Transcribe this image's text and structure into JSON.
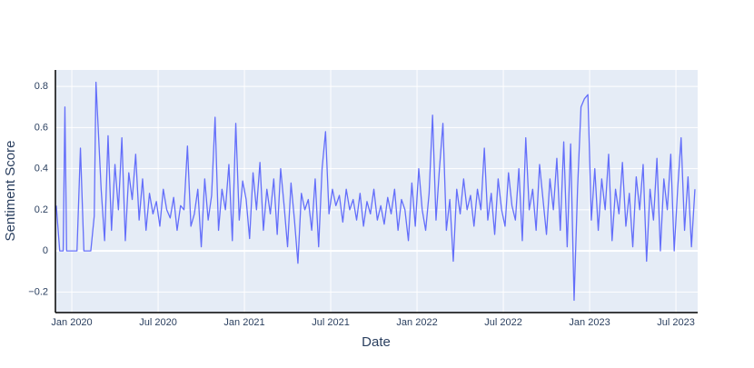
{
  "chart_data": {
    "type": "line",
    "x_label": "Date",
    "y_label": "Sentiment Score",
    "xlim": [
      2019.905,
      2023.626
    ],
    "ylim": [
      -0.3,
      0.88
    ],
    "xticks": [
      {
        "value": 2020.0,
        "label": "Jan 2020"
      },
      {
        "value": 2020.5,
        "label": "Jul 2020"
      },
      {
        "value": 2021.0,
        "label": "Jan 2021"
      },
      {
        "value": 2021.5,
        "label": "Jul 2021"
      },
      {
        "value": 2022.0,
        "label": "Jan 2022"
      },
      {
        "value": 2022.5,
        "label": "Jul 2022"
      },
      {
        "value": 2023.0,
        "label": "Jan 2023"
      },
      {
        "value": 2023.5,
        "label": "Jul 2023"
      }
    ],
    "yticks": [
      {
        "value": -0.2,
        "label": "−0.2"
      },
      0,
      0.2,
      0.4,
      0.6,
      0.8
    ],
    "grid": true,
    "x": [
      2019.91,
      2019.93,
      2019.95,
      2019.96,
      2019.97,
      2019.99,
      2020.01,
      2020.03,
      2020.05,
      2020.07,
      2020.09,
      2020.11,
      2020.13,
      2020.14,
      2020.17,
      2020.19,
      2020.21,
      2020.23,
      2020.25,
      2020.27,
      2020.29,
      2020.31,
      2020.33,
      2020.35,
      2020.37,
      2020.39,
      2020.41,
      2020.43,
      2020.45,
      2020.47,
      2020.49,
      2020.51,
      2020.53,
      2020.55,
      2020.57,
      2020.59,
      2020.61,
      2020.63,
      2020.65,
      2020.67,
      2020.69,
      2020.71,
      2020.73,
      2020.75,
      2020.77,
      2020.79,
      2020.81,
      2020.83,
      2020.85,
      2020.87,
      2020.89,
      2020.91,
      2020.93,
      2020.95,
      2020.97,
      2020.99,
      2021.01,
      2021.03,
      2021.05,
      2021.07,
      2021.09,
      2021.11,
      2021.13,
      2021.15,
      2021.17,
      2021.19,
      2021.21,
      2021.23,
      2021.25,
      2021.27,
      2021.29,
      2021.31,
      2021.33,
      2021.35,
      2021.37,
      2021.39,
      2021.41,
      2021.43,
      2021.45,
      2021.47,
      2021.49,
      2021.51,
      2021.53,
      2021.55,
      2021.57,
      2021.59,
      2021.61,
      2021.63,
      2021.65,
      2021.67,
      2021.69,
      2021.71,
      2021.73,
      2021.75,
      2021.77,
      2021.79,
      2021.81,
      2021.83,
      2021.85,
      2021.87,
      2021.89,
      2021.91,
      2021.93,
      2021.95,
      2021.97,
      2021.99,
      2022.01,
      2022.03,
      2022.05,
      2022.07,
      2022.09,
      2022.11,
      2022.13,
      2022.15,
      2022.17,
      2022.19,
      2022.21,
      2022.23,
      2022.25,
      2022.27,
      2022.29,
      2022.31,
      2022.33,
      2022.35,
      2022.37,
      2022.39,
      2022.41,
      2022.43,
      2022.45,
      2022.47,
      2022.49,
      2022.51,
      2022.53,
      2022.55,
      2022.57,
      2022.59,
      2022.61,
      2022.63,
      2022.65,
      2022.67,
      2022.69,
      2022.71,
      2022.73,
      2022.75,
      2022.77,
      2022.79,
      2022.81,
      2022.83,
      2022.85,
      2022.87,
      2022.89,
      2022.91,
      2022.93,
      2022.95,
      2022.97,
      2022.99,
      2023.01,
      2023.03,
      2023.05,
      2023.07,
      2023.09,
      2023.11,
      2023.13,
      2023.15,
      2023.17,
      2023.19,
      2023.21,
      2023.23,
      2023.25,
      2023.27,
      2023.29,
      2023.31,
      2023.33,
      2023.35,
      2023.37,
      2023.39,
      2023.41,
      2023.43,
      2023.45,
      2023.47,
      2023.49,
      2023.51,
      2023.53,
      2023.55,
      2023.57,
      2023.59,
      2023.61
    ],
    "series": [
      {
        "color": "#636efa",
        "values": [
          0.22,
          0,
          0,
          0.7,
          0,
          0,
          0,
          0,
          0.5,
          0,
          0,
          0,
          0.17,
          0.82,
          0.3,
          0.05,
          0.56,
          0.1,
          0.42,
          0.2,
          0.55,
          0.05,
          0.38,
          0.25,
          0.47,
          0.15,
          0.35,
          0.1,
          0.28,
          0.18,
          0.24,
          0.12,
          0.3,
          0.2,
          0.16,
          0.26,
          0.1,
          0.22,
          0.2,
          0.51,
          0.12,
          0.18,
          0.3,
          0.02,
          0.35,
          0.15,
          0.27,
          0.65,
          0.1,
          0.3,
          0.2,
          0.42,
          0.05,
          0.62,
          0.15,
          0.34,
          0.25,
          0.06,
          0.38,
          0.2,
          0.43,
          0.1,
          0.3,
          0.18,
          0.35,
          0.08,
          0.4,
          0.22,
          0.02,
          0.33,
          0.15,
          -0.06,
          0.28,
          0.2,
          0.25,
          0.1,
          0.35,
          0.02,
          0.4,
          0.58,
          0.18,
          0.3,
          0.22,
          0.27,
          0.14,
          0.3,
          0.2,
          0.25,
          0.15,
          0.28,
          0.12,
          0.24,
          0.18,
          0.3,
          0.15,
          0.22,
          0.13,
          0.26,
          0.18,
          0.3,
          0.1,
          0.25,
          0.2,
          0.05,
          0.33,
          0.12,
          0.4,
          0.2,
          0.1,
          0.28,
          0.66,
          0.15,
          0.4,
          0.62,
          0.1,
          0.25,
          -0.05,
          0.3,
          0.18,
          0.35,
          0.2,
          0.27,
          0.12,
          0.3,
          0.2,
          0.5,
          0.15,
          0.28,
          0.08,
          0.35,
          0.2,
          0.12,
          0.38,
          0.22,
          0.15,
          0.4,
          0.05,
          0.55,
          0.2,
          0.3,
          0.1,
          0.42,
          0.25,
          0.08,
          0.35,
          0.2,
          0.45,
          0.1,
          0.53,
          0.02,
          0.52,
          -0.24,
          0.3,
          0.7,
          0.74,
          0.76,
          0.15,
          0.4,
          0.1,
          0.35,
          0.2,
          0.47,
          0.05,
          0.3,
          0.18,
          0.43,
          0.12,
          0.28,
          0.02,
          0.36,
          0.2,
          0.42,
          -0.05,
          0.3,
          0.15,
          0.45,
          0,
          0.35,
          0.2,
          0.47,
          0,
          0.3,
          0.55,
          0.1,
          0.36,
          0.02,
          0.3
        ]
      }
    ]
  }
}
